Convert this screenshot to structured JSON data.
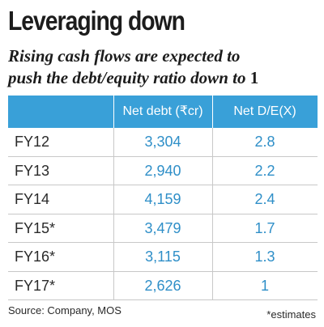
{
  "chart_data": {
    "type": "table",
    "title": "Leveraging down",
    "subtitle_line1": "Rising cash flows are expected to",
    "subtitle_line2": "push the debt/equity ratio down to",
    "subtitle_num": "1",
    "columns": [
      "",
      "Net debt (₹cr)",
      "Net D/E(X)"
    ],
    "rows": [
      {
        "label": "FY12",
        "net_debt": "3,304",
        "net_de": "2.8"
      },
      {
        "label": "FY13",
        "net_debt": "2,940",
        "net_de": "2.2"
      },
      {
        "label": "FY14",
        "net_debt": "4,159",
        "net_de": "2.4"
      },
      {
        "label": "FY15*",
        "net_debt": "3,479",
        "net_de": "1.7"
      },
      {
        "label": "FY16*",
        "net_debt": "3,115",
        "net_de": "1.3"
      },
      {
        "label": "FY17*",
        "net_debt": "2,626",
        "net_de": "1"
      }
    ],
    "source": "Source: Company, MOS",
    "note": "*estimates",
    "colors": {
      "header": "#39a0d8",
      "value": "#2f8fc8"
    }
  }
}
